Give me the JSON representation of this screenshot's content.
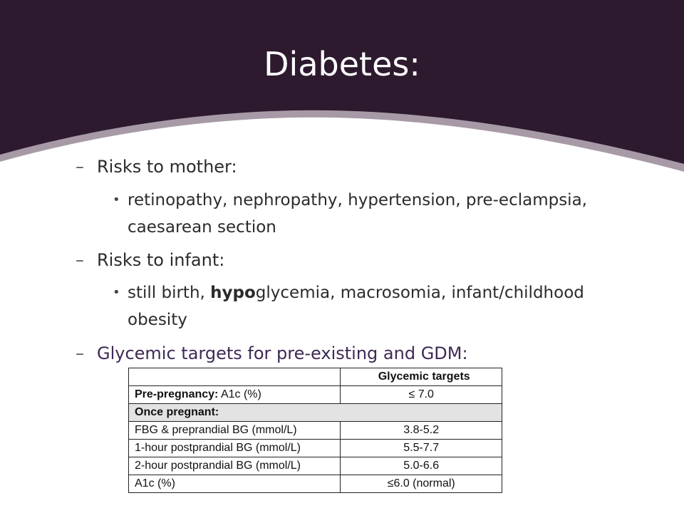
{
  "title": "Diabetes:",
  "items": {
    "mother": {
      "dash": "–",
      "label": "Risks to mother:",
      "bullet": "•",
      "detail_line1": "retinopathy, nephropathy, hypertension, pre-eclampsia,",
      "detail_line2": "caesarean section"
    },
    "infant": {
      "dash": "–",
      "label": "Risks to infant:",
      "bullet": "•",
      "detail_pre": "still birth, ",
      "detail_bold": "hypo",
      "detail_post": "glycemia, macrosomia, infant/childhood",
      "detail_line2": "obesity"
    },
    "glycemic": {
      "dash": "–",
      "label": "Glycemic targets for pre-existing and GDM:"
    }
  },
  "table": {
    "header": [
      "",
      "Glycemic targets"
    ],
    "prepregnancy": {
      "label_bold": "Pre-pregnancy:",
      "label_rest": " A1c (%)",
      "value": "≤ 7.0"
    },
    "section": "Once pregnant:",
    "rows": [
      {
        "label": "FBG & preprandial BG (mmol/L)",
        "value": "3.8-5.2"
      },
      {
        "label": "1-hour postprandial BG (mmol/L)",
        "value": "5.5-7.7"
      },
      {
        "label": "2-hour postprandial BG (mmol/L)",
        "value": "5.0-6.6"
      },
      {
        "label": "A1c (%)",
        "value": "≤6.0 (normal)"
      }
    ]
  },
  "colors": {
    "header_bg": "#2d1a2f",
    "header_band": "#a79aa6",
    "section_row": "#e3e3e3",
    "accent_text": "#3f2a55"
  }
}
